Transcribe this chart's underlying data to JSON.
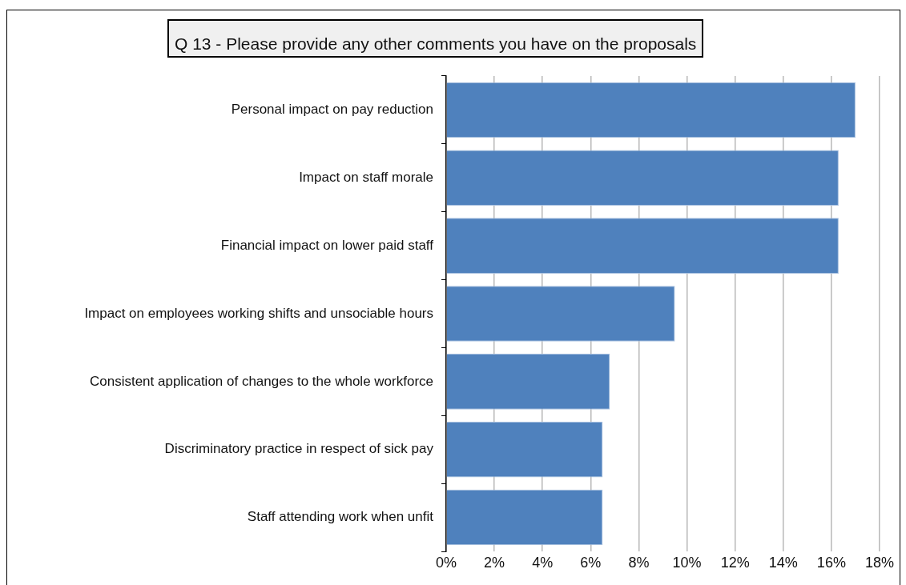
{
  "chart_data": {
    "type": "bar",
    "orientation": "horizontal",
    "title": "Q 13 - Please provide any other comments you have on the proposals",
    "categories": [
      "Personal impact on pay reduction",
      "Impact on staff morale",
      "Financial impact on lower paid staff",
      "Impact on employees working shifts and unsociable hours",
      "Consistent application of changes to the whole workforce",
      "Discriminatory practice in respect of sick pay",
      "Staff attending work when unfit"
    ],
    "values": [
      17.0,
      16.3,
      16.3,
      9.5,
      6.8,
      6.5,
      6.5
    ],
    "color": "#4f81bd",
    "xlim": [
      0,
      18
    ],
    "xticks": [
      {
        "value": 0,
        "label": "0%"
      },
      {
        "value": 2,
        "label": "2%"
      },
      {
        "value": 4,
        "label": "4%"
      },
      {
        "value": 6,
        "label": "6%"
      },
      {
        "value": 8,
        "label": "8%"
      },
      {
        "value": 10,
        "label": "10%"
      },
      {
        "value": 12,
        "label": "12%"
      },
      {
        "value": 14,
        "label": "14%"
      },
      {
        "value": 16,
        "label": "16%"
      },
      {
        "value": 18,
        "label": "18%"
      }
    ],
    "grid": "x"
  }
}
